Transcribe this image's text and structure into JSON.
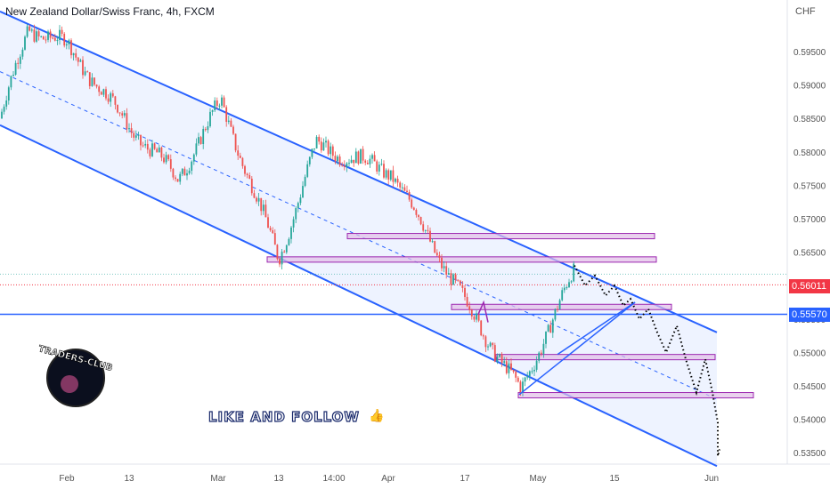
{
  "header": {
    "symbol_title": "New Zealand Dollar/Swiss Franc, 4h, FXCM",
    "currency": "CHF"
  },
  "watermark": {
    "logo_text": "TRADERS-CLUB",
    "cta": "LIKE AND FOLLOW",
    "cta_icon": "thumbs-up-icon"
  },
  "colors": {
    "up": "#26a69a",
    "down": "#ef5350",
    "channel": "#2962ff",
    "zone_fill": "#e1bee7",
    "zone_border": "#9c27b0",
    "price_label_current": "#f23645",
    "price_label_line": "#2962ff"
  },
  "price_labels": {
    "current": "0.56011",
    "horizontal_line": "0.55570"
  },
  "chart_data": {
    "type": "candlestick",
    "title": "New Zealand Dollar/Swiss Franc, 4h, FXCM",
    "ylabel": "CHF",
    "ylim": [
      0.533,
      0.6
    ],
    "y_ticks": [
      "0.59500",
      "0.59000",
      "0.58500",
      "0.58000",
      "0.57500",
      "0.57000",
      "0.56500",
      "0.56000",
      "0.55500",
      "0.55000",
      "0.54500",
      "0.54000",
      "0.53500"
    ],
    "x_ticks": [
      "Feb",
      "13",
      "Mar",
      "13",
      "14:00",
      "Apr",
      "17",
      "May",
      "15",
      "Jun"
    ],
    "price_path": [
      {
        "x": "start",
        "y": 0.585
      },
      {
        "x": "Jan end",
        "y": 0.5985
      },
      {
        "x": "Feb",
        "y": 0.596
      },
      {
        "x": "Feb mid",
        "y": 0.583
      },
      {
        "x": "Feb end",
        "y": 0.576
      },
      {
        "x": "Mar",
        "y": 0.5875
      },
      {
        "x": "Mar 13",
        "y": 0.564
      },
      {
        "x": "14:00",
        "y": 0.581
      },
      {
        "x": "Apr",
        "y": 0.577
      },
      {
        "x": "Apr 17",
        "y": 0.558
      },
      {
        "x": "Apr end",
        "y": 0.544
      },
      {
        "x": "May",
        "y": 0.552
      },
      {
        "x": "May 8",
        "y": 0.562
      }
    ],
    "channel": {
      "upper": [
        0.601,
        0.553
      ],
      "middle": [
        0.592,
        0.543
      ],
      "lower": [
        0.584,
        0.533
      ]
    },
    "horizontal_line": 0.5557,
    "current_price": 0.56011,
    "zones": [
      {
        "top": 0.5678,
        "bottom": 0.567
      },
      {
        "top": 0.5643,
        "bottom": 0.5635
      },
      {
        "top": 0.5572,
        "bottom": 0.5566
      },
      {
        "top": 0.5497,
        "bottom": 0.549
      },
      {
        "top": 0.544,
        "bottom": 0.5433
      }
    ],
    "projection": [
      0.563,
      0.56,
      0.5615,
      0.5585,
      0.56,
      0.557,
      0.558,
      0.555,
      0.5565,
      0.553,
      0.55,
      0.554,
      0.549,
      0.544,
      0.549,
      0.544,
      0.5395,
      0.5345,
      0.5355
    ]
  }
}
